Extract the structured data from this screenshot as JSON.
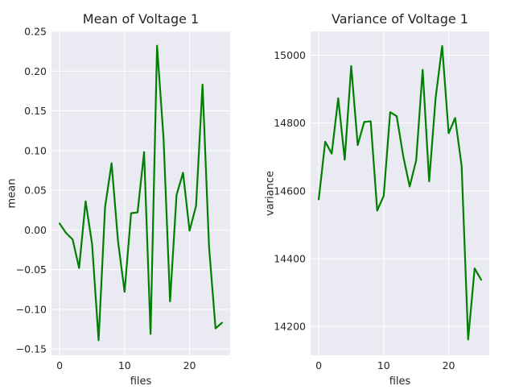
{
  "chart_data": [
    {
      "type": "line",
      "title": "Mean of Voltage 1",
      "xlabel": "files",
      "ylabel": "mean",
      "xlim": [
        -1.25,
        26.25
      ],
      "ylim": [
        -0.158,
        0.25
      ],
      "xticks": [
        0,
        10,
        20
      ],
      "xtick_labels": [
        "0",
        "10",
        "20"
      ],
      "yticks": [
        -0.15,
        -0.1,
        -0.05,
        0.0,
        0.05,
        0.1,
        0.15,
        0.2,
        0.25
      ],
      "ytick_labels": [
        "−0.15",
        "−0.10",
        "−0.05",
        "0.00",
        "0.05",
        "0.10",
        "0.15",
        "0.20",
        "0.25"
      ],
      "grid": true,
      "series": [
        {
          "color": "#008000",
          "x": [
            0,
            1,
            2,
            3,
            4,
            5,
            6,
            7,
            8,
            9,
            10,
            11,
            12,
            13,
            14,
            15,
            16,
            17,
            18,
            19,
            20,
            21,
            22,
            23,
            24,
            25
          ],
          "values": [
            0.008,
            -0.004,
            -0.012,
            -0.048,
            0.036,
            -0.018,
            -0.139,
            0.029,
            0.084,
            -0.015,
            -0.078,
            0.021,
            0.022,
            0.098,
            -0.131,
            0.232,
            0.115,
            -0.09,
            0.044,
            0.072,
            -0.001,
            0.03,
            0.183,
            -0.021,
            -0.124,
            -0.117
          ]
        }
      ]
    },
    {
      "type": "line",
      "title": "Variance of Voltage 1",
      "xlabel": "files",
      "ylabel": "variance",
      "xlim": [
        -1.25,
        26.25
      ],
      "ylim": [
        14115,
        15070
      ],
      "xticks": [
        0,
        10,
        20
      ],
      "xtick_labels": [
        "0",
        "10",
        "20"
      ],
      "yticks": [
        14200,
        14400,
        14600,
        14800,
        15000
      ],
      "ytick_labels": [
        "14200",
        "14400",
        "14600",
        "14800",
        "15000"
      ],
      "grid": true,
      "series": [
        {
          "color": "#008000",
          "x": [
            0,
            1,
            2,
            3,
            4,
            5,
            6,
            7,
            8,
            9,
            10,
            11,
            12,
            13,
            14,
            15,
            16,
            17,
            18,
            19,
            20,
            21,
            22,
            23,
            24,
            25
          ],
          "values": [
            14575,
            14745,
            14710,
            14873,
            14692,
            14968,
            14735,
            14803,
            14805,
            14542,
            14585,
            14832,
            14820,
            14703,
            14613,
            14690,
            14957,
            14628,
            14875,
            15027,
            14770,
            14815,
            14673,
            14162,
            14371,
            14338
          ]
        }
      ]
    }
  ]
}
